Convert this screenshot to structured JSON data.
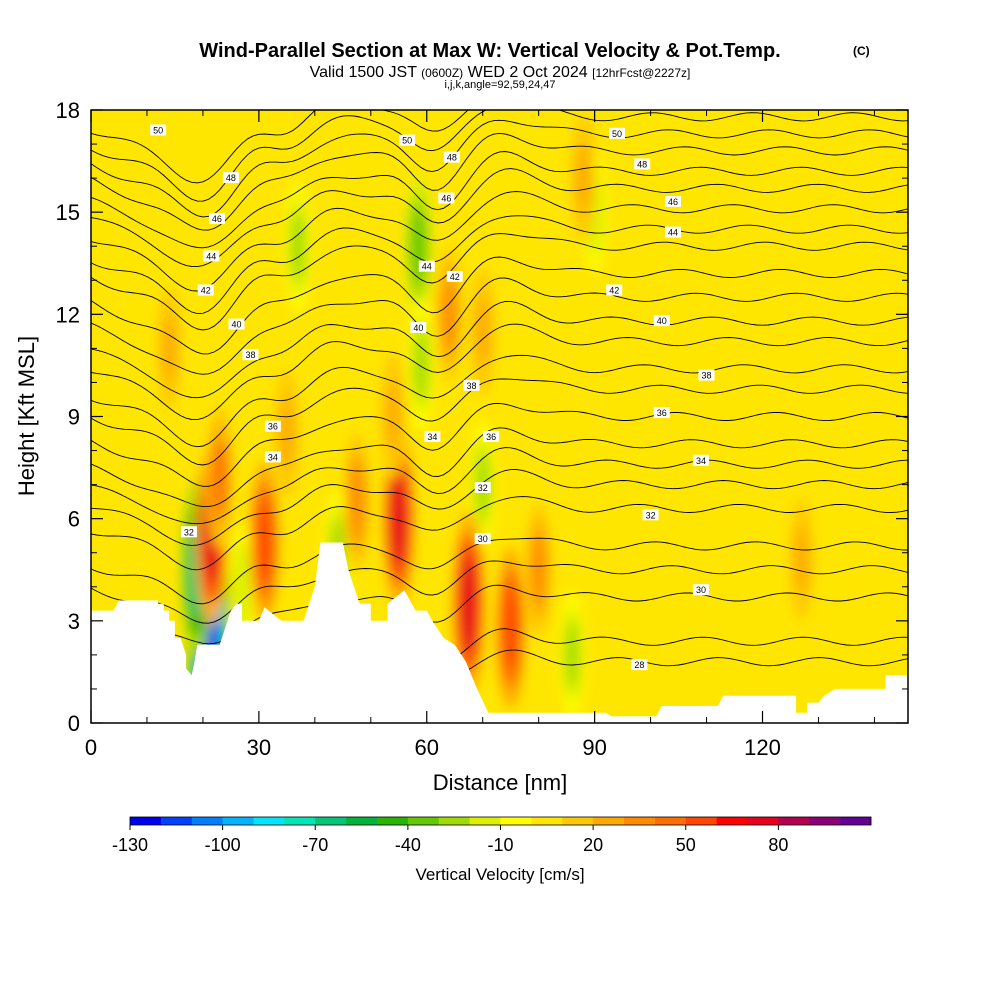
{
  "chart_data": {
    "type": "heatmap",
    "title": "Wind-Parallel Section at Max W: Vertical Velocity & Pot.Temp.",
    "title_mark": "(C)",
    "subtitle": {
      "prefix": "Valid 1500 JST",
      "utc": "(0600Z)",
      "date": "WED 2 Oct 2024",
      "forecast": "[12hrFcst@2227z]"
    },
    "subtitle2": "i,j,k,angle=92,59,24,47",
    "xlabel": "Distance [nm]",
    "ylabel": "Height [Kft MSL]",
    "xlim": [
      0,
      146
    ],
    "ylim": [
      0,
      18
    ],
    "x_ticks": [
      "0",
      "30",
      "60",
      "90",
      "120"
    ],
    "y_ticks": [
      "0",
      "3",
      "6",
      "9",
      "12",
      "15",
      "18"
    ],
    "background_w": 5,
    "colorbar": {
      "label": "Vertical Velocity [cm/s]",
      "tick_labels": [
        "-130",
        "-100",
        "-70",
        "-40",
        "-10",
        "20",
        "50",
        "80"
      ],
      "min": -130,
      "max": 100,
      "step": 10,
      "colors": [
        "#0000f0",
        "#0040ff",
        "#0080ff",
        "#00b4ff",
        "#00e6ff",
        "#00e6b4",
        "#00c878",
        "#00b43c",
        "#28b400",
        "#64c800",
        "#a0dc00",
        "#dcf000",
        "#ffff00",
        "#ffe600",
        "#ffc800",
        "#ffaa00",
        "#ff8c00",
        "#ff6e00",
        "#ff4600",
        "#ff0000",
        "#e6001e",
        "#b40050",
        "#8c0078",
        "#640096"
      ]
    },
    "updrafts": [
      {
        "x": 21.5,
        "y": 5.5,
        "w": 70
      },
      {
        "x": 23,
        "y": 7.2,
        "w": 40
      },
      {
        "x": 31,
        "y": 5.3,
        "w": 55
      },
      {
        "x": 35,
        "y": 8.5,
        "w": 25
      },
      {
        "x": 47.5,
        "y": 6.5,
        "w": 35
      },
      {
        "x": 55,
        "y": 6.0,
        "w": 70
      },
      {
        "x": 54,
        "y": 9.0,
        "w": 25
      },
      {
        "x": 67.5,
        "y": 3.5,
        "w": 75
      },
      {
        "x": 75,
        "y": 2.8,
        "w": 55
      },
      {
        "x": 80,
        "y": 4.5,
        "w": 30
      },
      {
        "x": 64,
        "y": 12.0,
        "w": 30
      },
      {
        "x": 70,
        "y": 11.5,
        "w": 25
      },
      {
        "x": 14,
        "y": 11.0,
        "w": 20
      },
      {
        "x": 127,
        "y": 4.8,
        "w": 20
      },
      {
        "x": 88,
        "y": 16.0,
        "w": 25
      }
    ],
    "downdrafts": [
      {
        "x": 21,
        "y": 2.8,
        "w": -130
      },
      {
        "x": 19,
        "y": 4.5,
        "w": -70
      },
      {
        "x": 37,
        "y": 14.0,
        "w": -30
      },
      {
        "x": 58.5,
        "y": 14.0,
        "w": -40
      },
      {
        "x": 59,
        "y": 10.5,
        "w": -30
      },
      {
        "x": 27,
        "y": 4.0,
        "w": -20
      },
      {
        "x": 44,
        "y": 5.0,
        "w": -25
      },
      {
        "x": 70,
        "y": 7.0,
        "w": -25
      },
      {
        "x": 86,
        "y": 2.0,
        "w": -25
      },
      {
        "x": 90,
        "y": 15.0,
        "w": -20
      }
    ],
    "terrain": [
      [
        0,
        3.3
      ],
      [
        4,
        3.3
      ],
      [
        5,
        3.6
      ],
      [
        12,
        3.6
      ],
      [
        12,
        3.5
      ],
      [
        13,
        3.5
      ],
      [
        13,
        3.3
      ],
      [
        14,
        3.3
      ],
      [
        14,
        3.0
      ],
      [
        15,
        3.0
      ],
      [
        15,
        2.5
      ],
      [
        16,
        2.5
      ],
      [
        17,
        2.0
      ],
      [
        17,
        1.6
      ],
      [
        18,
        1.4
      ],
      [
        18.5,
        1.8
      ],
      [
        19,
        2.3
      ],
      [
        22,
        2.3
      ],
      [
        23,
        2.3
      ],
      [
        24,
        2.8
      ],
      [
        25,
        3.3
      ],
      [
        26,
        3.5
      ],
      [
        27,
        3.5
      ],
      [
        27,
        3.0
      ],
      [
        30,
        3.0
      ],
      [
        31,
        3.4
      ],
      [
        34,
        3.0
      ],
      [
        38,
        3.0
      ],
      [
        40,
        4.0
      ],
      [
        41,
        5.3
      ],
      [
        45,
        5.3
      ],
      [
        46,
        4.5
      ],
      [
        47,
        4.0
      ],
      [
        48,
        3.5
      ],
      [
        50,
        3.5
      ],
      [
        50,
        3.0
      ],
      [
        53,
        3.0
      ],
      [
        53,
        3.5
      ],
      [
        56,
        3.9
      ],
      [
        57,
        3.6
      ],
      [
        58,
        3.3
      ],
      [
        60,
        3.3
      ],
      [
        61,
        3.0
      ],
      [
        63,
        2.5
      ],
      [
        65,
        2.3
      ],
      [
        67,
        1.8
      ],
      [
        69,
        1.0
      ],
      [
        71,
        0.3
      ],
      [
        92,
        0.3
      ],
      [
        93,
        0.2
      ],
      [
        101,
        0.2
      ],
      [
        102,
        0.5
      ],
      [
        112,
        0.5
      ],
      [
        113,
        0.8
      ],
      [
        126,
        0.8
      ],
      [
        126,
        0.3
      ],
      [
        128,
        0.3
      ],
      [
        128,
        0.6
      ],
      [
        130,
        0.6
      ],
      [
        131,
        0.8
      ],
      [
        133,
        1.0
      ],
      [
        142,
        1.0
      ],
      [
        142,
        1.4
      ],
      [
        146,
        1.4
      ]
    ],
    "isentropes": {
      "values": [
        28,
        29,
        30,
        31,
        32,
        33,
        34,
        35,
        36,
        37,
        38,
        39,
        40,
        41,
        42,
        43,
        44,
        45,
        46,
        47,
        48,
        49,
        50,
        51,
        52
      ],
      "base_heights": [
        1.8,
        2.4,
        3.7,
        4.5,
        5.2,
        6.3,
        7.0,
        7.6,
        8.2,
        9.0,
        9.8,
        10.4,
        11.2,
        11.8,
        12.5,
        13.2,
        14.0,
        14.5,
        15.1,
        15.7,
        16.2,
        16.8,
        17.3,
        17.8,
        18.3
      ]
    },
    "contour_labels": [
      {
        "text": "50",
        "x": 12,
        "y": 17.4
      },
      {
        "text": "48",
        "x": 25,
        "y": 16.0
      },
      {
        "text": "46",
        "x": 22.5,
        "y": 14.8
      },
      {
        "text": "44",
        "x": 21.5,
        "y": 13.7
      },
      {
        "text": "42",
        "x": 20.5,
        "y": 12.7
      },
      {
        "text": "40",
        "x": 26,
        "y": 11.7
      },
      {
        "text": "38",
        "x": 28.5,
        "y": 10.8
      },
      {
        "text": "36",
        "x": 32.5,
        "y": 8.7
      },
      {
        "text": "34",
        "x": 32.5,
        "y": 7.8
      },
      {
        "text": "32",
        "x": 17.5,
        "y": 5.6
      },
      {
        "text": "50",
        "x": 56.5,
        "y": 17.1
      },
      {
        "text": "48",
        "x": 64.5,
        "y": 16.6
      },
      {
        "text": "46",
        "x": 63.5,
        "y": 15.4
      },
      {
        "text": "44",
        "x": 60,
        "y": 13.4
      },
      {
        "text": "42",
        "x": 65,
        "y": 13.1
      },
      {
        "text": "40",
        "x": 58.5,
        "y": 11.6
      },
      {
        "text": "38",
        "x": 68,
        "y": 9.9
      },
      {
        "text": "36",
        "x": 71.5,
        "y": 8.4
      },
      {
        "text": "34",
        "x": 61,
        "y": 8.4
      },
      {
        "text": "32",
        "x": 70,
        "y": 6.9
      },
      {
        "text": "30",
        "x": 70,
        "y": 5.4
      },
      {
        "text": "50",
        "x": 94,
        "y": 17.3
      },
      {
        "text": "48",
        "x": 98.5,
        "y": 16.4
      },
      {
        "text": "46",
        "x": 104,
        "y": 15.3
      },
      {
        "text": "44",
        "x": 104,
        "y": 14.4
      },
      {
        "text": "42",
        "x": 93.5,
        "y": 12.7
      },
      {
        "text": "40",
        "x": 102,
        "y": 11.8
      },
      {
        "text": "38",
        "x": 110,
        "y": 10.2
      },
      {
        "text": "36",
        "x": 102,
        "y": 9.1
      },
      {
        "text": "34",
        "x": 109,
        "y": 7.7
      },
      {
        "text": "32",
        "x": 100,
        "y": 6.1
      },
      {
        "text": "30",
        "x": 109,
        "y": 3.9
      },
      {
        "text": "28",
        "x": 98,
        "y": 1.7
      }
    ]
  }
}
